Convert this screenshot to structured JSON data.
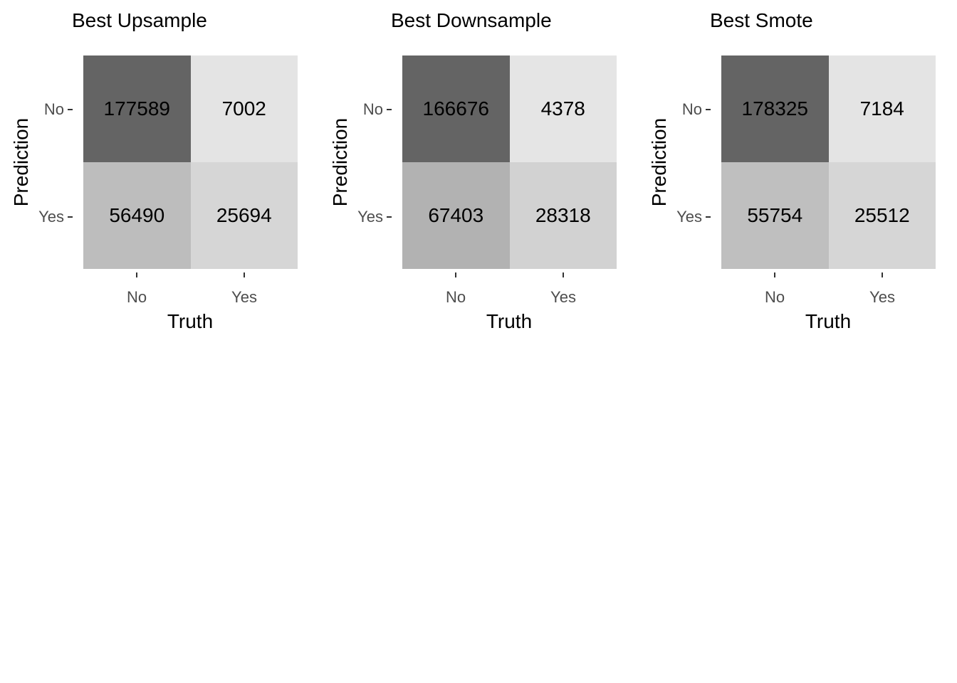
{
  "chart_data": {
    "type": "heatmap",
    "subtype": "confusion-matrix-grid",
    "x_axis": {
      "label": "Truth",
      "categories": [
        "No",
        "Yes"
      ]
    },
    "y_axis": {
      "label": "Prediction",
      "categories": [
        "No",
        "Yes"
      ]
    },
    "panels": [
      {
        "title": "Best Upsample",
        "row_meaning": "Prediction: No, Yes",
        "col_meaning": "Truth: No, Yes",
        "values": [
          [
            177589,
            7002
          ],
          [
            56490,
            25694
          ]
        ],
        "fills": [
          [
            "#646464",
            "#e4e4e4"
          ],
          [
            "#bdbdbd",
            "#d6d6d6"
          ]
        ]
      },
      {
        "title": "Best Downsample",
        "row_meaning": "Prediction: No, Yes",
        "col_meaning": "Truth: No, Yes",
        "values": [
          [
            166676,
            4378
          ],
          [
            67403,
            28318
          ]
        ],
        "fills": [
          [
            "#646464",
            "#e5e5e5"
          ],
          [
            "#b2b2b2",
            "#d2d2d2"
          ]
        ]
      },
      {
        "title": "Best Smote",
        "row_meaning": "Prediction: No, Yes",
        "col_meaning": "Truth: No, Yes",
        "values": [
          [
            178325,
            7184
          ],
          [
            55754,
            25512
          ]
        ],
        "fills": [
          [
            "#646464",
            "#e4e4e4"
          ],
          [
            "#bfbfbf",
            "#d6d6d6"
          ]
        ]
      }
    ],
    "style": {
      "background": "#ffffff",
      "text_color": "#000000",
      "axis_text_color": "#4d4d4d",
      "tick_color": "#333333",
      "legend": "none",
      "grid_lines": "off"
    }
  }
}
